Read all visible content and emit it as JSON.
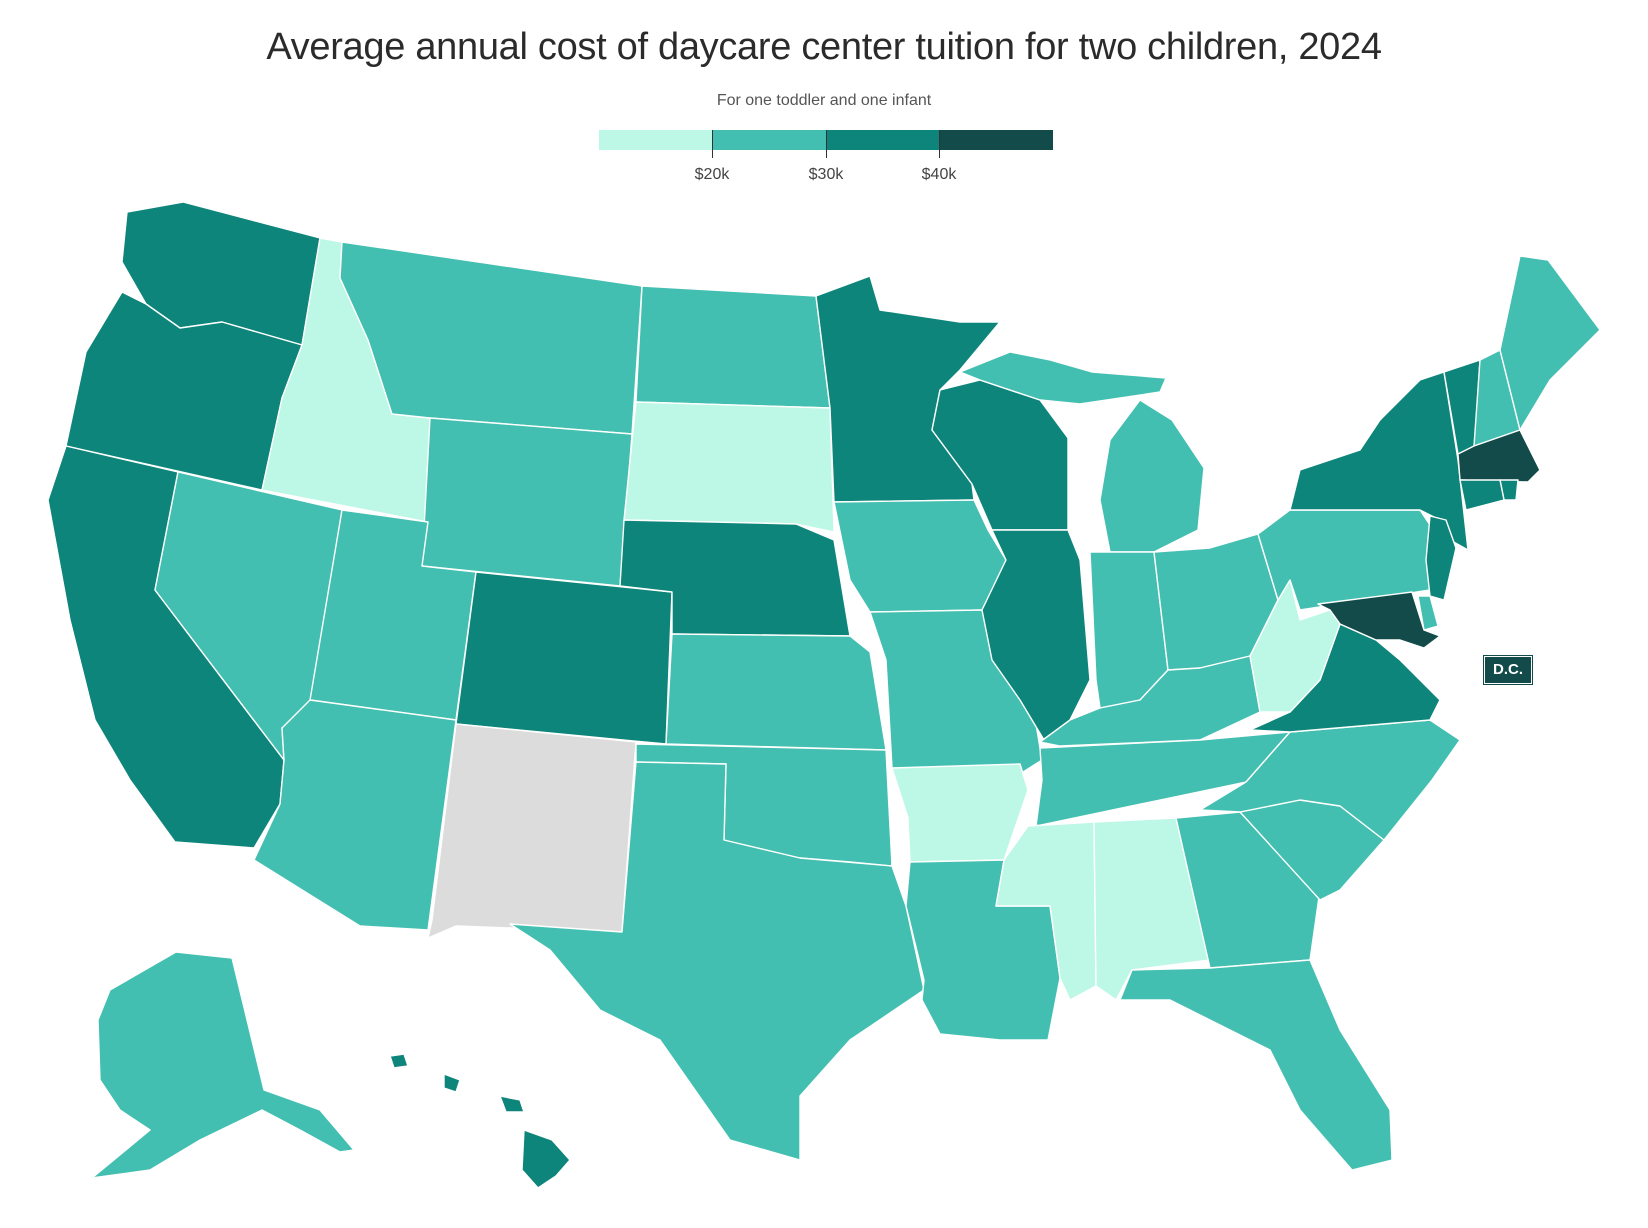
{
  "title": "Average annual cost of daycare center tuition for two children, 2024",
  "subtitle": "For one toddler and one infant",
  "legend": {
    "colors": [
      "#bdf7e6",
      "#42bfb0",
      "#0e857a",
      "#134b4b"
    ],
    "ticks": [
      "$20k",
      "$30k",
      "$40k"
    ]
  },
  "no_data_color": "#dcdcdc",
  "dc_label": "D.C.",
  "states": {
    "WA": 2,
    "OR": 2,
    "CA": 2,
    "ID": 0,
    "NV": 1,
    "MT": 1,
    "WY": 1,
    "UT": 1,
    "AZ": 1,
    "CO": 2,
    "NM": "no-data",
    "ND": 1,
    "SD": 0,
    "NE": 2,
    "KS": 1,
    "OK": 1,
    "TX": 1,
    "MN": 2,
    "IA": 1,
    "MO": 1,
    "AR": 0,
    "LA": 1,
    "WI": 2,
    "IL": 2,
    "MI": 1,
    "IN": 1,
    "OH": 1,
    "KY": 1,
    "TN": 1,
    "MS": 0,
    "AL": 0,
    "GA": 1,
    "FL": 1,
    "SC": 1,
    "NC": 1,
    "VA": 2,
    "WV": 0,
    "PA": 1,
    "NY": 2,
    "VT": 2,
    "NH": 1,
    "ME": 1,
    "MA": 3,
    "RI": 2,
    "CT": 2,
    "NJ": 2,
    "DE": 1,
    "MD": 3,
    "DC": 3,
    "AK": 1,
    "HI": 2
  }
}
